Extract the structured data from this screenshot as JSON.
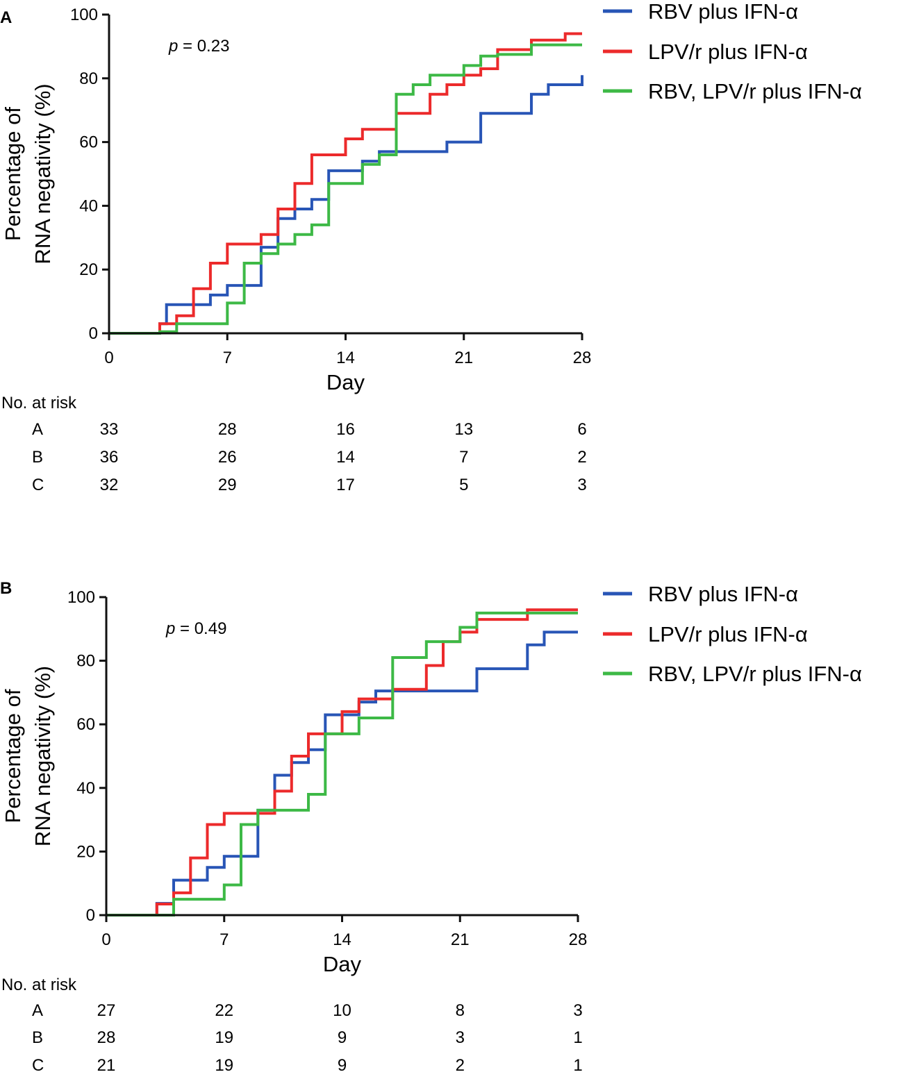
{
  "colors": {
    "A": "#2855b6",
    "B": "#ec2a2b",
    "C": "#3db946",
    "axis": "#111111"
  },
  "chart_data": [
    {
      "panel": "A",
      "type": "line",
      "step": true,
      "xlabel": "Day",
      "ylabel": "Percentage of RNA negativity (%)",
      "ylabel_lines": [
        "Percentage of",
        "RNA negativity (%)"
      ],
      "xlim": [
        0,
        28
      ],
      "ylim": [
        0,
        100
      ],
      "xticks": [
        0,
        7,
        14,
        21,
        28
      ],
      "yticks": [
        0,
        20,
        40,
        60,
        80,
        100
      ],
      "p_prefix": "p",
      "p_text": " = 0.23",
      "series": [
        {
          "key": "A",
          "name": "RBV plus  IFN-α",
          "x": [
            0,
            3,
            3.4,
            5,
            6,
            7,
            8,
            9,
            10,
            11,
            12,
            13,
            15,
            16,
            20,
            22,
            25,
            26,
            28
          ],
          "y": [
            0,
            3,
            9,
            9,
            12,
            15,
            15,
            27,
            36,
            39,
            42,
            51,
            54,
            57,
            60,
            69,
            75,
            78,
            81
          ]
        },
        {
          "key": "B",
          "name": "LPV/r plus IFN-α",
          "x": [
            0,
            3,
            4,
            5,
            6,
            7,
            9,
            10,
            11,
            12,
            14,
            15,
            17,
            19,
            20,
            21,
            22,
            23,
            25,
            27,
            28
          ],
          "y": [
            0,
            3,
            5.5,
            14,
            22,
            28,
            31,
            39,
            47,
            56,
            61,
            64,
            69,
            75,
            78,
            81,
            83,
            89,
            92,
            94,
            94
          ]
        },
        {
          "key": "C",
          "name": "RBV, LPV/r plus IFN-α",
          "x": [
            0,
            3,
            4,
            7,
            8,
            9,
            10,
            11,
            12,
            13,
            15,
            16,
            17,
            18,
            19,
            21,
            22,
            23,
            25,
            28
          ],
          "y": [
            0,
            0.5,
            3,
            9.5,
            22,
            25,
            28,
            31,
            34,
            47,
            53,
            56,
            75,
            78,
            81,
            84,
            87,
            87.5,
            90.5,
            90.5
          ]
        }
      ],
      "risk_table": {
        "title": "No. at risk",
        "rows": [
          {
            "label": "A",
            "values": [
              "33",
              "28",
              "16",
              "13",
              "6"
            ]
          },
          {
            "label": "B",
            "values": [
              "36",
              "26",
              "14",
              "7",
              "2"
            ]
          },
          {
            "label": "C",
            "values": [
              "32",
              "29",
              "17",
              "5",
              "3"
            ]
          }
        ]
      }
    },
    {
      "panel": "B",
      "type": "line",
      "step": true,
      "xlabel": "Day",
      "ylabel": "Percentage of RNA negativity (%)",
      "ylabel_lines": [
        "Percentage of",
        "RNA negativity (%)"
      ],
      "xlim": [
        0,
        28
      ],
      "ylim": [
        0,
        100
      ],
      "xticks": [
        0,
        7,
        14,
        21,
        28
      ],
      "yticks": [
        0,
        20,
        40,
        60,
        80,
        100
      ],
      "p_prefix": "p",
      "p_text": " = 0.49",
      "series": [
        {
          "key": "A",
          "name": "RBV plus  IFN-α",
          "x": [
            0,
            3,
            4,
            6,
            7,
            8,
            9,
            10,
            11,
            12,
            13,
            15,
            16,
            22,
            25,
            26,
            27,
            28
          ],
          "y": [
            0,
            3.7,
            11,
            15,
            18.5,
            18.5,
            33,
            44,
            48,
            52,
            63,
            67,
            70.5,
            77.5,
            85,
            89,
            89,
            89
          ]
        },
        {
          "key": "B",
          "name": "LPV/r plus IFN-α",
          "x": [
            0,
            3,
            4,
            5,
            6,
            7,
            9,
            10,
            11,
            12,
            14,
            15,
            17,
            19,
            20,
            21,
            22,
            25,
            28
          ],
          "y": [
            0,
            3.5,
            7,
            18,
            28.5,
            32,
            32,
            39,
            50,
            57,
            64,
            68,
            71,
            78.5,
            86,
            89,
            93,
            96,
            96
          ]
        },
        {
          "key": "C",
          "name": "RBV, LPV/r plus IFN-α",
          "x": [
            0,
            4,
            7,
            8,
            9,
            12,
            13,
            14,
            15,
            17,
            19,
            21,
            22,
            28
          ],
          "y": [
            0,
            5,
            9.5,
            28.5,
            33,
            38,
            57,
            57,
            62,
            81,
            86,
            90.5,
            95,
            95
          ]
        }
      ],
      "risk_table": {
        "title": "No. at risk",
        "rows": [
          {
            "label": "A",
            "values": [
              "27",
              "22",
              "10",
              "8",
              "3"
            ]
          },
          {
            "label": "B",
            "values": [
              "28",
              "19",
              "9",
              "3",
              "1"
            ]
          },
          {
            "label": "C",
            "values": [
              "21",
              "19",
              "9",
              "2",
              "1"
            ]
          }
        ]
      }
    }
  ]
}
